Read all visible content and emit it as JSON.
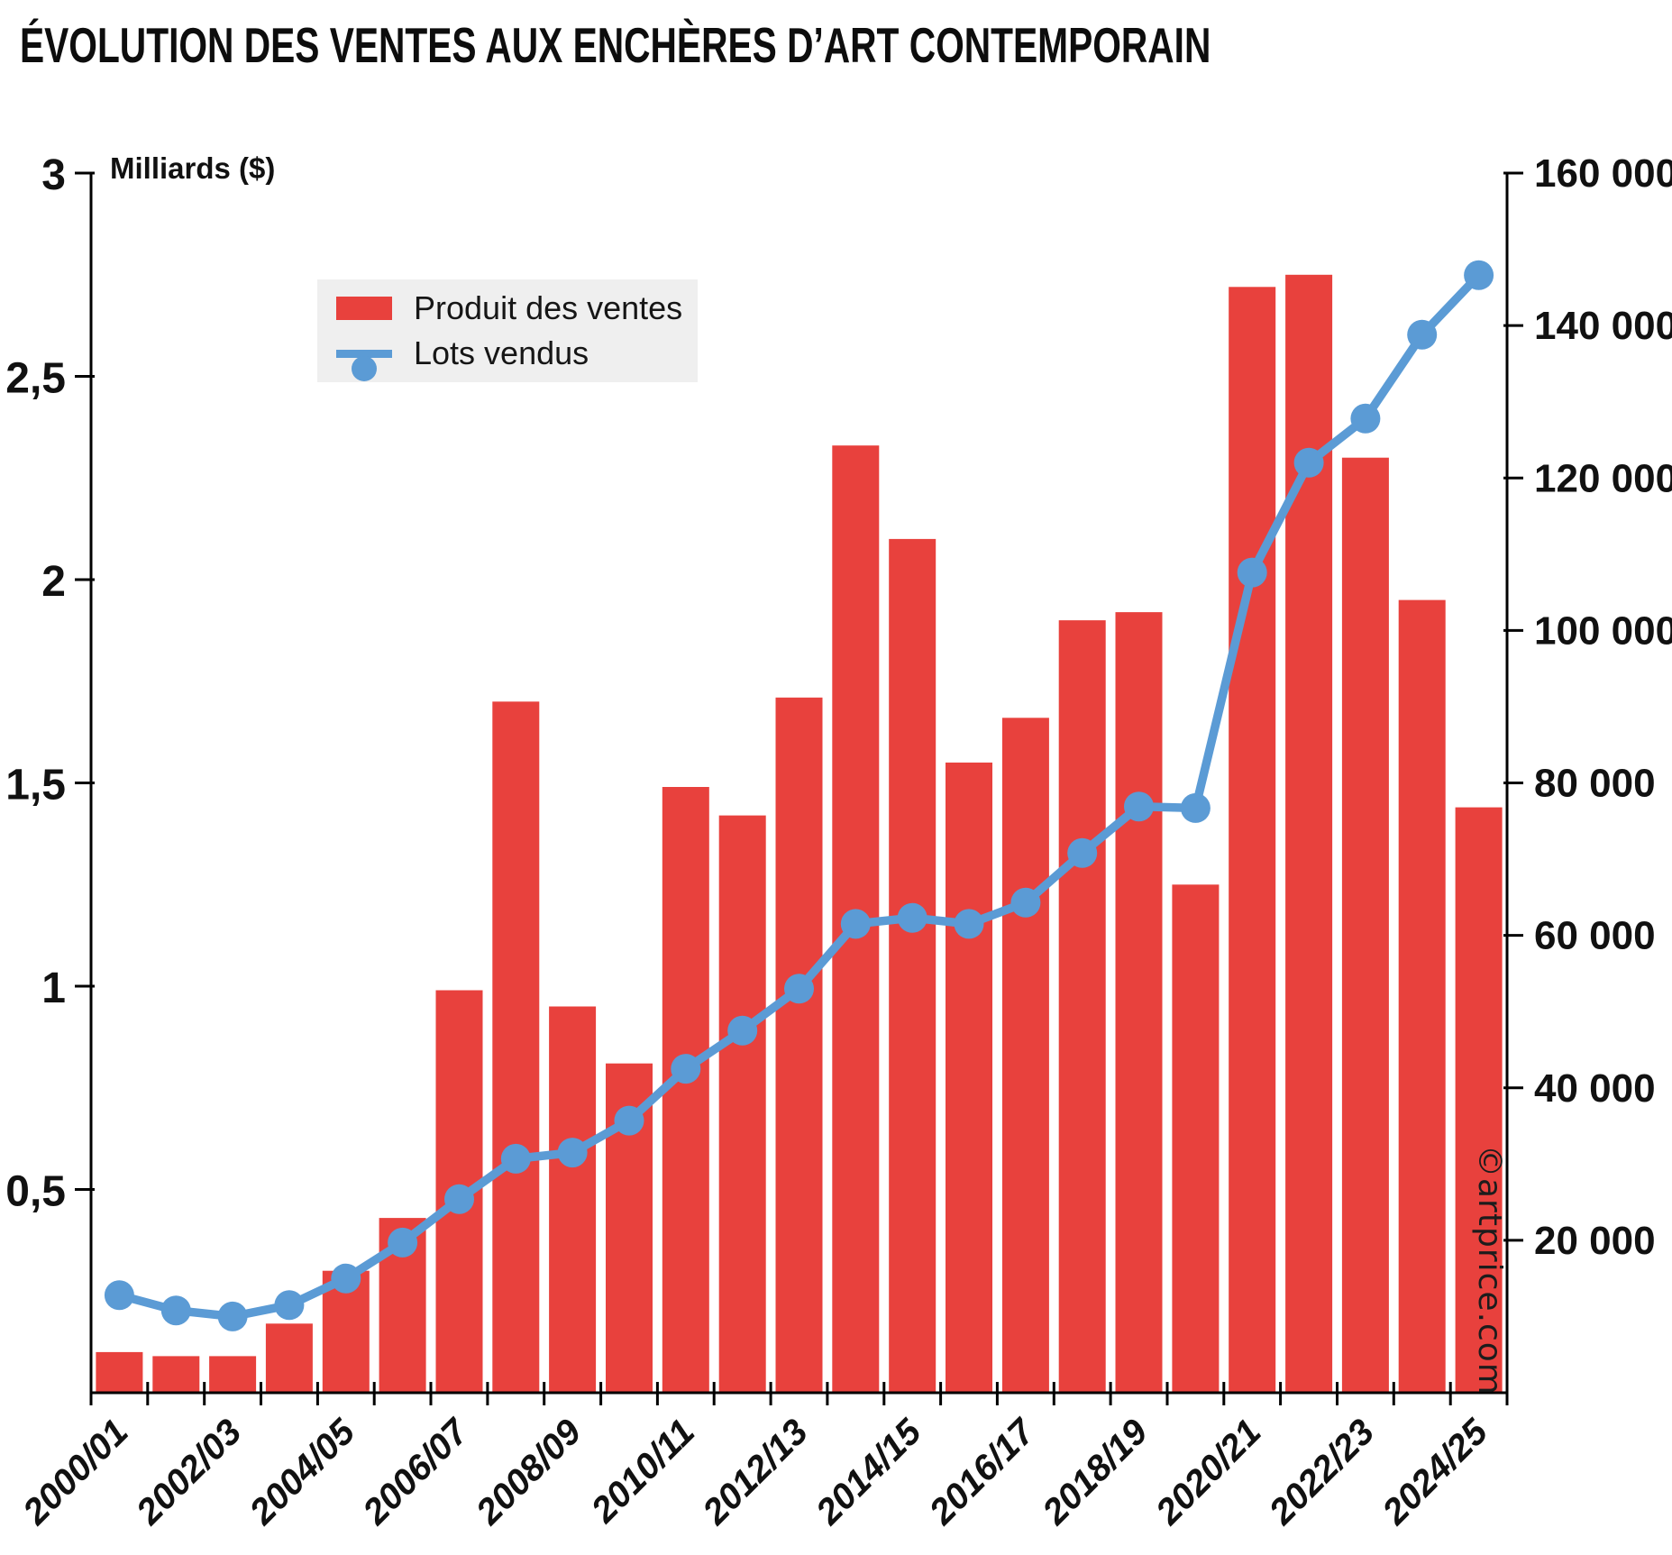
{
  "title": "ÉVOLUTION DES VENTES AUX ENCHÈRES D’ART CONTEMPORAIN",
  "watermark": "©artprice.com",
  "colors": {
    "bar": "#e8413d",
    "line": "#5b9bd5",
    "legend_bg": "#efefef",
    "axis": "#000000",
    "text": "#111111"
  },
  "legend": {
    "produit_label": "Produit des ventes",
    "lots_label": "Lots vendus"
  },
  "left_axis": {
    "title": "Milliards ($)",
    "min": 0,
    "max": 3,
    "ticks": [
      {
        "label": "0,5",
        "value": 0.5
      },
      {
        "label": "1",
        "value": 1
      },
      {
        "label": "1,5",
        "value": 1.5
      },
      {
        "label": "2",
        "value": 2
      },
      {
        "label": "2,5",
        "value": 2.5
      },
      {
        "label": "3",
        "value": 3
      }
    ]
  },
  "right_axis": {
    "min": 0,
    "max": 160000,
    "ticks": [
      {
        "label": "20 000",
        "value": 20000
      },
      {
        "label": "40 000",
        "value": 40000
      },
      {
        "label": "60 000",
        "value": 60000
      },
      {
        "label": "80 000",
        "value": 80000
      },
      {
        "label": "100 000",
        "value": 100000
      },
      {
        "label": "120 000",
        "value": 120000
      },
      {
        "label": "140 000",
        "value": 140000
      },
      {
        "label": "160 000",
        "value": 160000
      }
    ]
  },
  "x_axis": {
    "labels": [
      {
        "label": "2000/01",
        "slot": 0
      },
      {
        "label": "2002/03",
        "slot": 2
      },
      {
        "label": "2004/05",
        "slot": 4
      },
      {
        "label": "2006/07",
        "slot": 6
      },
      {
        "label": "2008/09",
        "slot": 8
      },
      {
        "label": "2010/11",
        "slot": 10
      },
      {
        "label": "2012/13",
        "slot": 12
      },
      {
        "label": "2014/15",
        "slot": 14
      },
      {
        "label": "2016/17",
        "slot": 16
      },
      {
        "label": "2018/19",
        "slot": 18
      },
      {
        "label": "2020/21",
        "slot": 20
      },
      {
        "label": "2022/23",
        "slot": 22
      },
      {
        "label": "2024/25",
        "slot": 24
      }
    ]
  },
  "chart_data": {
    "type": "bar+line",
    "title": "ÉVOLUTION DES VENTES AUX ENCHÈRES D’ART CONTEMPORAIN",
    "categories": [
      "2000/01",
      "2001/02",
      "2002/03",
      "2003/04",
      "2004/05",
      "2005/06",
      "2006/07",
      "2007/08",
      "2008/09",
      "2009/10",
      "2010/11",
      "2011/12",
      "2012/13",
      "2013/14",
      "2014/15",
      "2015/16",
      "2016/17",
      "2017/18",
      "2018/19",
      "2019/20",
      "2020/21",
      "2021/22",
      "2022/23",
      "2023/24",
      "2024/25"
    ],
    "series": [
      {
        "name": "Produit des ventes",
        "type": "bar",
        "axis": "left",
        "unit": "Milliards ($)",
        "values": [
          0.1,
          0.09,
          0.09,
          0.17,
          0.3,
          0.43,
          0.99,
          1.7,
          0.95,
          0.81,
          1.49,
          1.42,
          1.71,
          2.33,
          2.1,
          1.55,
          1.66,
          1.9,
          1.92,
          1.25,
          2.72,
          2.75,
          2.3,
          1.95,
          1.44
        ]
      },
      {
        "name": "Lots vendus",
        "type": "line",
        "axis": "right",
        "unit": "lots",
        "values": [
          12800,
          10800,
          10000,
          11500,
          15000,
          19700,
          25400,
          30700,
          31500,
          35700,
          42500,
          47500,
          53000,
          61500,
          62300,
          61500,
          64300,
          70800,
          76900,
          76700,
          107600,
          122000,
          127800,
          138800,
          146600
        ]
      }
    ],
    "left_ylim": [
      0,
      3
    ],
    "right_ylim": [
      0,
      160000
    ],
    "grid": false,
    "legend_position": "upper-left-inside"
  }
}
